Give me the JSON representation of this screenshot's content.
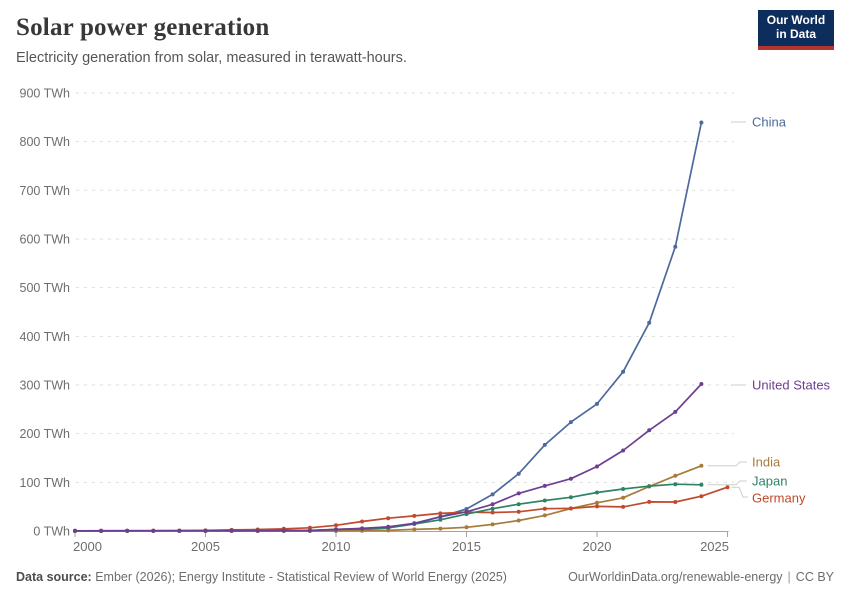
{
  "header": {
    "title": "Solar power generation",
    "subtitle": "Electricity generation from solar, measured in terawatt-hours.",
    "logo": {
      "line1": "Our World",
      "line2": "in Data",
      "bg": "#0D2E5C",
      "accent": "#B5342E"
    }
  },
  "footer": {
    "source_label": "Data source:",
    "source_text": " Ember (2026); Energy Institute - Statistical Review of World Energy (2025)",
    "link": "OurWorldinData.org/renewable-energy",
    "separator": "|",
    "license": "CC BY"
  },
  "chart_data": {
    "type": "line",
    "title": "Solar power generation",
    "subtitle": "Electricity generation from solar, measured in terawatt-hours.",
    "unit": "TWh",
    "x": [
      2000,
      2001,
      2002,
      2003,
      2004,
      2005,
      2006,
      2007,
      2008,
      2009,
      2010,
      2011,
      2012,
      2013,
      2014,
      2015,
      2016,
      2017,
      2018,
      2019,
      2020,
      2021,
      2022,
      2023,
      2024,
      2025
    ],
    "xticks": [
      2000,
      2005,
      2010,
      2015,
      2020,
      2025
    ],
    "yticks": [
      0,
      100,
      200,
      300,
      400,
      500,
      600,
      700,
      800,
      900
    ],
    "ylim": [
      0,
      900
    ],
    "ytick_suffix": " TWh",
    "grid": true,
    "legend_position": "right-edge-labels",
    "series": [
      {
        "name": "China",
        "color": "#4C6A9C",
        "label_y": 122,
        "values": [
          0.02,
          0.03,
          0.04,
          0.06,
          0.08,
          0.1,
          0.15,
          0.2,
          0.25,
          0.55,
          0.7,
          2.6,
          6.3,
          15.5,
          29.2,
          45.2,
          75.3,
          117.8,
          176.9,
          223.8,
          261.1,
          327.0,
          427.8,
          584.2,
          839.4
        ]
      },
      {
        "name": "United States",
        "color": "#6D3E91",
        "label_y": 385,
        "values": [
          0.49,
          0.54,
          0.56,
          0.53,
          0.58,
          0.55,
          0.51,
          0.61,
          0.86,
          0.89,
          3.1,
          5.3,
          8.6,
          15.8,
          29.2,
          39.4,
          54.9,
          77.3,
          92.7,
          107.5,
          132.6,
          165.3,
          207.0,
          244.7,
          302.0
        ]
      },
      {
        "name": "India",
        "color": "#A67C3B",
        "label_y": 462,
        "values": [
          0.01,
          0.01,
          0.02,
          0.02,
          0.02,
          0.02,
          0.02,
          0.02,
          0.03,
          0.05,
          0.12,
          0.54,
          1.17,
          3.35,
          5.02,
          7.6,
          13.5,
          21.6,
          32.1,
          46.3,
          58.0,
          68.3,
          91.4,
          113.4,
          133.9
        ]
      },
      {
        "name": "Japan",
        "color": "#2C8465",
        "label_y": 481,
        "values": [
          0.35,
          0.43,
          0.52,
          0.62,
          0.72,
          0.84,
          0.96,
          1.08,
          1.22,
          1.44,
          3.5,
          4.8,
          6.6,
          14.3,
          23.0,
          34.8,
          45.8,
          55.1,
          62.7,
          69.3,
          79.1,
          86.3,
          92.3,
          96.1,
          94.9
        ]
      },
      {
        "name": "Germany",
        "color": "#C14A2C",
        "label_y": 498,
        "values": [
          0.06,
          0.08,
          0.16,
          0.31,
          0.56,
          1.28,
          2.22,
          3.08,
          4.42,
          6.58,
          11.7,
          19.6,
          26.4,
          31.0,
          36.1,
          38.7,
          38.1,
          39.4,
          45.8,
          46.4,
          50.6,
          49.5,
          59.7,
          59.6,
          71.6,
          90.0
        ]
      }
    ]
  }
}
